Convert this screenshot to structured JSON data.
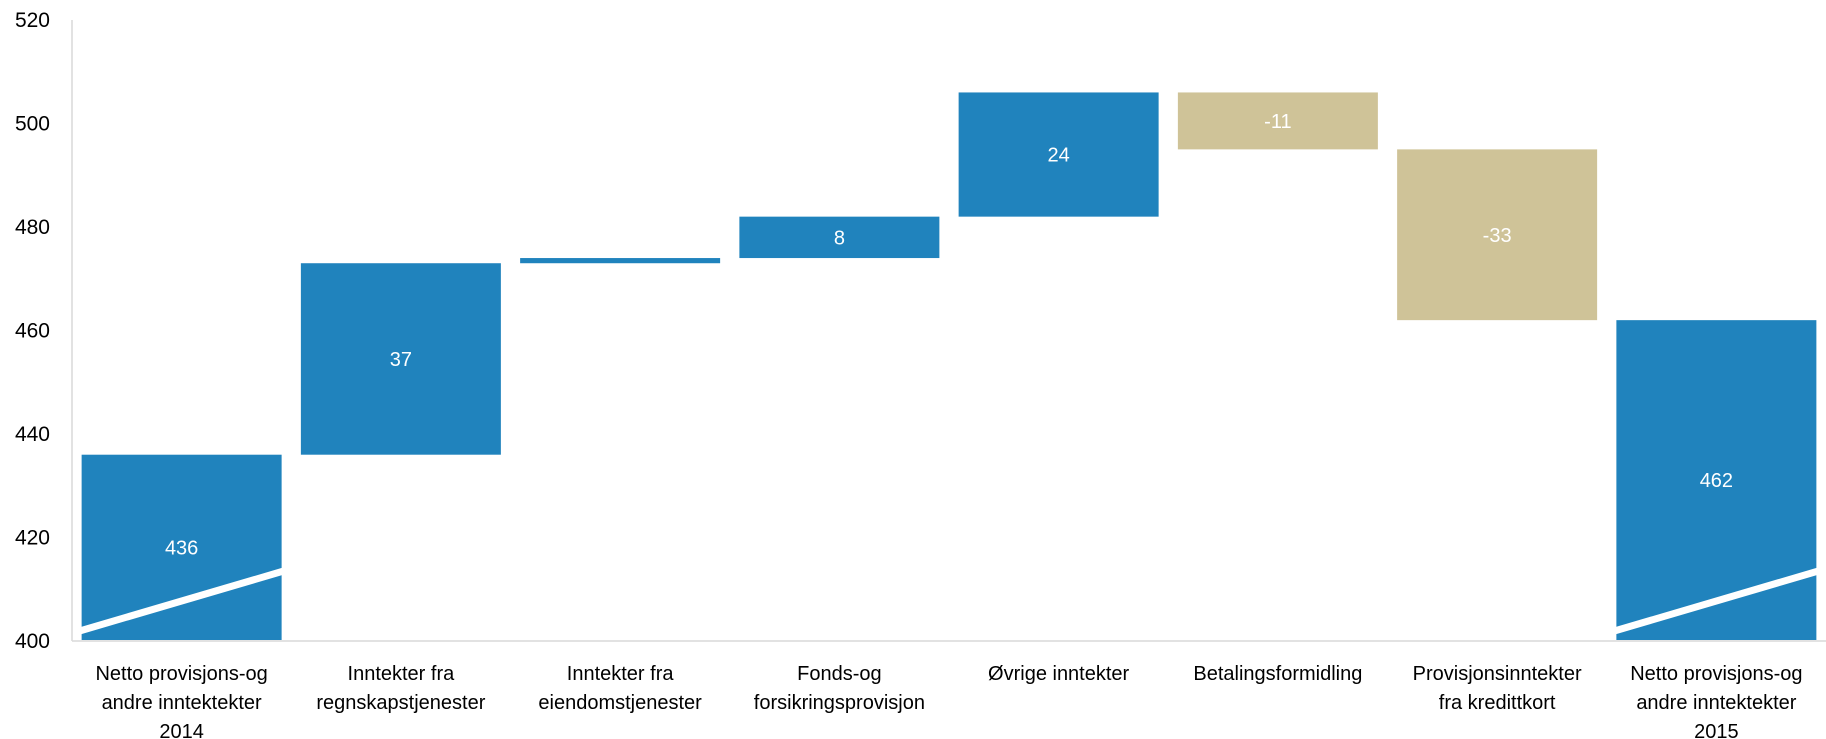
{
  "chart_data": {
    "type": "bar",
    "subtype": "waterfall",
    "title": "",
    "xlabel": "",
    "ylabel": "",
    "ylim": [
      400,
      520
    ],
    "yticks": [
      400,
      420,
      440,
      460,
      480,
      500,
      520
    ],
    "axis_break": true,
    "grid": false,
    "legend": "none",
    "colors": {
      "total": "#2083bd",
      "increase": "#2083bd",
      "decrease": "#cfc398"
    },
    "categories": [
      [
        "Netto provisjons-og",
        "andre inntektekter",
        "2014"
      ],
      [
        "Inntekter fra",
        "regnskapstjenester"
      ],
      [
        "Inntekter fra",
        "eiendomstjenester"
      ],
      [
        "Fonds-og",
        "forsikringsprovisjon"
      ],
      [
        "Øvrige inntekter"
      ],
      [
        "Betalingsformidling"
      ],
      [
        "Provisjonsinntekter",
        "fra kredittkort"
      ],
      [
        "Netto provisjons-og",
        "andre inntektekter",
        "2015"
      ]
    ],
    "bars": [
      {
        "kind": "total",
        "value": 436,
        "label": "436"
      },
      {
        "kind": "increase",
        "value": 37,
        "label": "37"
      },
      {
        "kind": "increase",
        "value": 1,
        "label": ""
      },
      {
        "kind": "increase",
        "value": 8,
        "label": "8"
      },
      {
        "kind": "increase",
        "value": 24,
        "label": "24"
      },
      {
        "kind": "decrease",
        "value": -11,
        "label": "-11"
      },
      {
        "kind": "decrease",
        "value": -33,
        "label": "-33"
      },
      {
        "kind": "total",
        "value": 462,
        "label": "462"
      }
    ]
  }
}
